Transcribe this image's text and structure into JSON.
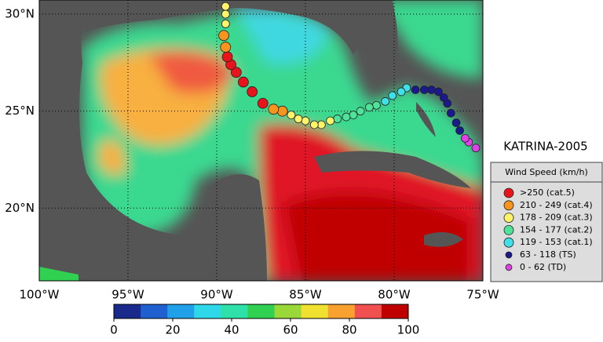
{
  "chart_data": {
    "type": "track-map",
    "title": "KATRINA-2005",
    "xlim": [
      -100,
      -75
    ],
    "ylim": [
      16.25,
      30.73
    ],
    "xticks": [
      {
        "value": -100,
        "label": "100°W"
      },
      {
        "value": -95,
        "label": "95°W"
      },
      {
        "value": -90,
        "label": "90°W"
      },
      {
        "value": -85,
        "label": "85°W"
      },
      {
        "value": -80,
        "label": "80°W"
      },
      {
        "value": -75,
        "label": "75°W"
      }
    ],
    "yticks": [
      {
        "value": 20,
        "label": "20°N"
      },
      {
        "value": 25,
        "label": "25°N"
      },
      {
        "value": 30,
        "label": "30°N"
      }
    ],
    "grid": true,
    "legend": {
      "title": "Wind Speed (km/h)",
      "entries": [
        {
          "label": ">250 (cat.5)",
          "color": "#e8141c"
        },
        {
          "label": "210 - 249 (cat.4)",
          "color": "#f7941d"
        },
        {
          "label": "178 - 209 (cat.3)",
          "color": "#fff36b"
        },
        {
          "label": "154 - 177 (cat.2)",
          "color": "#4fe39a"
        },
        {
          "label": "119 - 153 (cat.1)",
          "color": "#3fe0e8"
        },
        {
          "label": "63 - 118 (TS)",
          "color": "#1a1a8c"
        },
        {
          "label": "0 - 62 (TD)",
          "color": "#e040e8"
        }
      ]
    },
    "track": {
      "lon": [
        -75.4,
        -75.8,
        -76.0,
        -76.3,
        -76.5,
        -76.8,
        -77.0,
        -77.2,
        -77.5,
        -77.9,
        -78.3,
        -78.8,
        -79.3,
        -79.6,
        -80.1,
        -80.5,
        -81.0,
        -81.4,
        -81.9,
        -82.3,
        -82.7,
        -83.2,
        -83.6,
        -84.1,
        -84.5,
        -85.0,
        -85.4,
        -85.8,
        -86.3,
        -86.8,
        -87.4,
        -88.0,
        -88.5,
        -88.9,
        -89.2,
        -89.4,
        -89.5,
        -89.6,
        -89.5,
        -89.5,
        -89.5
      ],
      "lat": [
        23.1,
        23.4,
        23.6,
        24.0,
        24.4,
        24.9,
        25.4,
        25.7,
        26.0,
        26.1,
        26.1,
        26.1,
        26.2,
        26.0,
        25.8,
        25.5,
        25.3,
        25.2,
        25.0,
        24.8,
        24.7,
        24.6,
        24.5,
        24.3,
        24.3,
        24.5,
        24.6,
        24.8,
        25.0,
        25.1,
        25.4,
        26.0,
        26.5,
        27.0,
        27.4,
        27.8,
        28.3,
        28.9,
        29.5,
        30.0,
        30.4
      ],
      "category": [
        6,
        6,
        6,
        5,
        5,
        5,
        5,
        5,
        5,
        5,
        5,
        5,
        4,
        4,
        4,
        4,
        3,
        3,
        3,
        3,
        3,
        3,
        2,
        2,
        2,
        2,
        2,
        2,
        1,
        1,
        0,
        0,
        0,
        0,
        0,
        0,
        1,
        1,
        2,
        2,
        2
      ]
    },
    "colorbar": {
      "lim": [
        0,
        100
      ],
      "ticks": [
        0,
        20,
        40,
        60,
        80,
        100
      ],
      "colors": [
        "#1a2a8c",
        "#1f5fd0",
        "#1fa0e8",
        "#2fd8e8",
        "#2fe0a8",
        "#30d050",
        "#9ad83a",
        "#f0e030",
        "#f8a030",
        "#f05050",
        "#c00000"
      ]
    }
  }
}
